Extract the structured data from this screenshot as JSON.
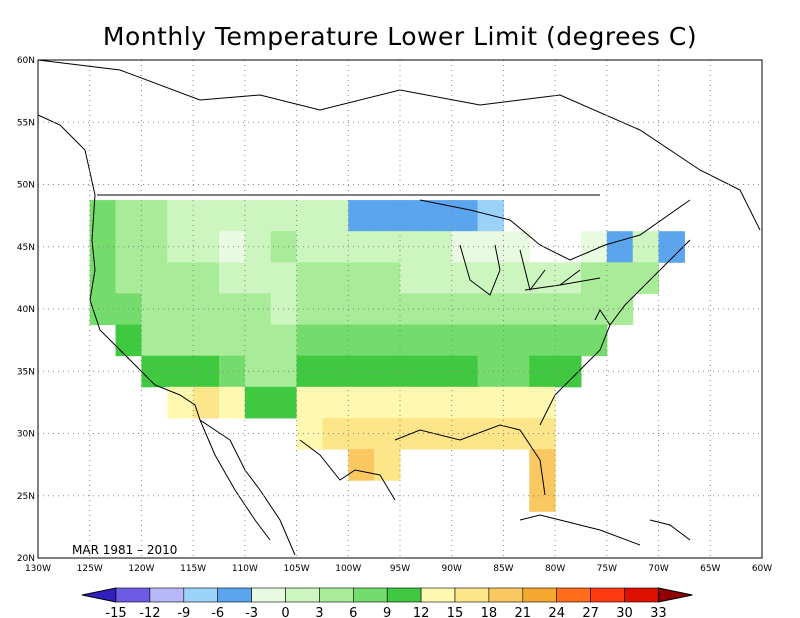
{
  "title": "Monthly Temperature Lower Limit (degrees C)",
  "period_label": "MAR 1981 – 2010",
  "axes": {
    "lon_labels": [
      "130W",
      "125W",
      "120W",
      "115W",
      "110W",
      "105W",
      "100W",
      "95W",
      "90W",
      "85W",
      "80W",
      "75W",
      "70W",
      "65W",
      "60W"
    ],
    "lat_labels": [
      "20N",
      "25N",
      "30N",
      "35N",
      "40N",
      "45N",
      "50N",
      "55N",
      "60N"
    ],
    "lon_values": [
      -130,
      -125,
      -120,
      -115,
      -110,
      -105,
      -100,
      -95,
      -90,
      -85,
      -80,
      -75,
      -70,
      -65,
      -60
    ],
    "lat_values": [
      20,
      25,
      30,
      35,
      40,
      45,
      50,
      55,
      60
    ]
  },
  "colorbar": {
    "labels": [
      "-15",
      "-12",
      "-9",
      "-6",
      "-3",
      "0",
      "3",
      "6",
      "9",
      "12",
      "15",
      "18",
      "21",
      "24",
      "27",
      "30",
      "33"
    ],
    "colors": [
      "#6e5ce6",
      "#b8b8f8",
      "#9ad2fa",
      "#5aa5ee",
      "#e8fae0",
      "#ccf5c0",
      "#a8ec9a",
      "#74dc6c",
      "#40c840",
      "#fff8b0",
      "#fde68a",
      "#f9c860",
      "#f5a830",
      "#ff6c1a",
      "#ff3a10",
      "#e01000",
      "#b00000"
    ],
    "left_arrow_color": "#3020c0",
    "right_arrow_color": "#900000"
  },
  "grid": true,
  "chart_data": {
    "type": "heatmap",
    "title": "Monthly Temperature Lower Limit (degrees C)",
    "xlabel": "",
    "ylabel": "",
    "xlim": [
      -130,
      -60
    ],
    "ylim": [
      20,
      60
    ],
    "cell_size_deg": 2.5,
    "bins": [
      -15,
      -12,
      -9,
      -6,
      -3,
      0,
      3,
      6,
      9,
      12,
      15,
      18,
      21,
      24,
      27,
      30,
      33
    ],
    "cells": [
      {
        "lon": -123.75,
        "lat": 47.5,
        "value": 7
      },
      {
        "lon": -123.75,
        "lat": 45,
        "value": 7
      },
      {
        "lon": -123.75,
        "lat": 42.5,
        "value": 7
      },
      {
        "lon": -123.75,
        "lat": 40,
        "value": 7
      },
      {
        "lon": -121.25,
        "lat": 47.5,
        "value": 5
      },
      {
        "lon": -121.25,
        "lat": 45,
        "value": 4
      },
      {
        "lon": -121.25,
        "lat": 42.5,
        "value": 4
      },
      {
        "lon": -121.25,
        "lat": 40,
        "value": 7
      },
      {
        "lon": -121.25,
        "lat": 37.5,
        "value": 10
      },
      {
        "lon": -118.75,
        "lat": 47.5,
        "value": 4
      },
      {
        "lon": -118.75,
        "lat": 45,
        "value": 5
      },
      {
        "lon": -118.75,
        "lat": 42.5,
        "value": 4
      },
      {
        "lon": -118.75,
        "lat": 40,
        "value": 5
      },
      {
        "lon": -118.75,
        "lat": 37.5,
        "value": 5
      },
      {
        "lon": -118.75,
        "lat": 35,
        "value": 11
      },
      {
        "lon": -116.25,
        "lat": 47.5,
        "value": 2
      },
      {
        "lon": -116.25,
        "lat": 45,
        "value": 2
      },
      {
        "lon": -116.25,
        "lat": 42.5,
        "value": 4
      },
      {
        "lon": -116.25,
        "lat": 40,
        "value": 4
      },
      {
        "lon": -116.25,
        "lat": 37.5,
        "value": 5
      },
      {
        "lon": -116.25,
        "lat": 35,
        "value": 11
      },
      {
        "lon": -116.25,
        "lat": 32.5,
        "value": 13
      },
      {
        "lon": -113.75,
        "lat": 47.5,
        "value": 1
      },
      {
        "lon": -113.75,
        "lat": 45,
        "value": 2
      },
      {
        "lon": -113.75,
        "lat": 42.5,
        "value": 4
      },
      {
        "lon": -113.75,
        "lat": 40,
        "value": 4
      },
      {
        "lon": -113.75,
        "lat": 37.5,
        "value": 5
      },
      {
        "lon": -113.75,
        "lat": 35,
        "value": 10
      },
      {
        "lon": -113.75,
        "lat": 32.5,
        "value": 16
      },
      {
        "lon": -111.25,
        "lat": 47.5,
        "value": 1
      },
      {
        "lon": -111.25,
        "lat": 45,
        "value": -1
      },
      {
        "lon": -111.25,
        "lat": 42.5,
        "value": 2
      },
      {
        "lon": -111.25,
        "lat": 40,
        "value": 4
      },
      {
        "lon": -111.25,
        "lat": 37.5,
        "value": 5
      },
      {
        "lon": -111.25,
        "lat": 35,
        "value": 7
      },
      {
        "lon": -111.25,
        "lat": 32.5,
        "value": 13
      },
      {
        "lon": -108.75,
        "lat": 47.5,
        "value": 1
      },
      {
        "lon": -108.75,
        "lat": 45,
        "value": 2
      },
      {
        "lon": -108.75,
        "lat": 42.5,
        "value": 2
      },
      {
        "lon": -108.75,
        "lat": 40,
        "value": 4
      },
      {
        "lon": -108.75,
        "lat": 37.5,
        "value": 5
      },
      {
        "lon": -108.75,
        "lat": 35,
        "value": 5
      },
      {
        "lon": -108.75,
        "lat": 32.5,
        "value": 10
      },
      {
        "lon": -106.25,
        "lat": 47.5,
        "value": 1
      },
      {
        "lon": -106.25,
        "lat": 45,
        "value": 4
      },
      {
        "lon": -106.25,
        "lat": 42.5,
        "value": 2
      },
      {
        "lon": -106.25,
        "lat": 40,
        "value": 1
      },
      {
        "lon": -106.25,
        "lat": 37.5,
        "value": 4
      },
      {
        "lon": -106.25,
        "lat": 35,
        "value": 5
      },
      {
        "lon": -106.25,
        "lat": 32.5,
        "value": 10
      },
      {
        "lon": -103.75,
        "lat": 47.5,
        "value": 1
      },
      {
        "lon": -103.75,
        "lat": 45,
        "value": 2
      },
      {
        "lon": -103.75,
        "lat": 42.5,
        "value": 4
      },
      {
        "lon": -103.75,
        "lat": 40,
        "value": 5
      },
      {
        "lon": -103.75,
        "lat": 37.5,
        "value": 7
      },
      {
        "lon": -103.75,
        "lat": 35,
        "value": 10
      },
      {
        "lon": -103.75,
        "lat": 32.5,
        "value": 13
      },
      {
        "lon": -103.75,
        "lat": 30,
        "value": 13
      },
      {
        "lon": -101.25,
        "lat": 47.5,
        "value": 1
      },
      {
        "lon": -101.25,
        "lat": 45,
        "value": 2
      },
      {
        "lon": -101.25,
        "lat": 42.5,
        "value": 4
      },
      {
        "lon": -101.25,
        "lat": 40,
        "value": 5
      },
      {
        "lon": -101.25,
        "lat": 37.5,
        "value": 7
      },
      {
        "lon": -101.25,
        "lat": 35,
        "value": 10
      },
      {
        "lon": -101.25,
        "lat": 32.5,
        "value": 13
      },
      {
        "lon": -101.25,
        "lat": 30,
        "value": 16
      },
      {
        "lon": -98.75,
        "lat": 47.5,
        "value": -4
      },
      {
        "lon": -98.75,
        "lat": 45,
        "value": 1
      },
      {
        "lon": -98.75,
        "lat": 42.5,
        "value": 4
      },
      {
        "lon": -98.75,
        "lat": 40,
        "value": 5
      },
      {
        "lon": -98.75,
        "lat": 37.5,
        "value": 7
      },
      {
        "lon": -98.75,
        "lat": 35,
        "value": 10
      },
      {
        "lon": -98.75,
        "lat": 32.5,
        "value": 13
      },
      {
        "lon": -98.75,
        "lat": 30,
        "value": 16
      },
      {
        "lon": -98.75,
        "lat": 27.5,
        "value": 19
      },
      {
        "lon": -96.25,
        "lat": 47.5,
        "value": -4
      },
      {
        "lon": -96.25,
        "lat": 45,
        "value": 1
      },
      {
        "lon": -96.25,
        "lat": 42.5,
        "value": 4
      },
      {
        "lon": -96.25,
        "lat": 40,
        "value": 5
      },
      {
        "lon": -96.25,
        "lat": 37.5,
        "value": 7
      },
      {
        "lon": -96.25,
        "lat": 35,
        "value": 11
      },
      {
        "lon": -96.25,
        "lat": 32.5,
        "value": 13
      },
      {
        "lon": -96.25,
        "lat": 30,
        "value": 16
      },
      {
        "lon": -96.25,
        "lat": 27.5,
        "value": 16
      },
      {
        "lon": -93.75,
        "lat": 47.5,
        "value": -4
      },
      {
        "lon": -93.75,
        "lat": 45,
        "value": 1
      },
      {
        "lon": -93.75,
        "lat": 42.5,
        "value": 2
      },
      {
        "lon": -93.75,
        "lat": 40,
        "value": 5
      },
      {
        "lon": -93.75,
        "lat": 37.5,
        "value": 7
      },
      {
        "lon": -93.75,
        "lat": 35,
        "value": 10
      },
      {
        "lon": -93.75,
        "lat": 32.5,
        "value": 13
      },
      {
        "lon": -93.75,
        "lat": 30,
        "value": 16
      },
      {
        "lon": -91.25,
        "lat": 47.5,
        "value": -4
      },
      {
        "lon": -91.25,
        "lat": 45,
        "value": 1
      },
      {
        "lon": -91.25,
        "lat": 42.5,
        "value": 2
      },
      {
        "lon": -91.25,
        "lat": 40,
        "value": 5
      },
      {
        "lon": -91.25,
        "lat": 37.5,
        "value": 7
      },
      {
        "lon": -91.25,
        "lat": 35,
        "value": 11
      },
      {
        "lon": -91.25,
        "lat": 32.5,
        "value": 13
      },
      {
        "lon": -91.25,
        "lat": 30,
        "value": 16
      },
      {
        "lon": -88.75,
        "lat": 47.5,
        "value": -4
      },
      {
        "lon": -88.75,
        "lat": 45,
        "value": -1
      },
      {
        "lon": -88.75,
        "lat": 42.5,
        "value": 2
      },
      {
        "lon": -88.75,
        "lat": 40,
        "value": 5
      },
      {
        "lon": -88.75,
        "lat": 37.5,
        "value": 7
      },
      {
        "lon": -88.75,
        "lat": 35,
        "value": 10
      },
      {
        "lon": -88.75,
        "lat": 32.5,
        "value": 13
      },
      {
        "lon": -88.75,
        "lat": 30,
        "value": 16
      },
      {
        "lon": -86.25,
        "lat": 47.5,
        "value": -7
      },
      {
        "lon": -86.25,
        "lat": 45,
        "value": -1
      },
      {
        "lon": -86.25,
        "lat": 42.5,
        "value": 2
      },
      {
        "lon": -86.25,
        "lat": 40,
        "value": 5
      },
      {
        "lon": -86.25,
        "lat": 37.5,
        "value": 7
      },
      {
        "lon": -86.25,
        "lat": 35,
        "value": 7
      },
      {
        "lon": -86.25,
        "lat": 32.5,
        "value": 13
      },
      {
        "lon": -86.25,
        "lat": 30,
        "value": 16
      },
      {
        "lon": -83.75,
        "lat": 45,
        "value": -1
      },
      {
        "lon": -83.75,
        "lat": 42.5,
        "value": 2
      },
      {
        "lon": -83.75,
        "lat": 40,
        "value": 5
      },
      {
        "lon": -83.75,
        "lat": 37.5,
        "value": 7
      },
      {
        "lon": -83.75,
        "lat": 35,
        "value": 7
      },
      {
        "lon": -83.75,
        "lat": 32.5,
        "value": 13
      },
      {
        "lon": -83.75,
        "lat": 30,
        "value": 16
      },
      {
        "lon": -81.25,
        "lat": 42.5,
        "value": 2
      },
      {
        "lon": -81.25,
        "lat": 40,
        "value": 5
      },
      {
        "lon": -81.25,
        "lat": 37.5,
        "value": 7
      },
      {
        "lon": -81.25,
        "lat": 35,
        "value": 10
      },
      {
        "lon": -81.25,
        "lat": 32.5,
        "value": 13
      },
      {
        "lon": -81.25,
        "lat": 30,
        "value": 16
      },
      {
        "lon": -81.25,
        "lat": 27.5,
        "value": 19
      },
      {
        "lon": -81.25,
        "lat": 25,
        "value": 19
      },
      {
        "lon": -78.75,
        "lat": 42.5,
        "value": 2
      },
      {
        "lon": -78.75,
        "lat": 40,
        "value": 4
      },
      {
        "lon": -78.75,
        "lat": 37.5,
        "value": 7
      },
      {
        "lon": -78.75,
        "lat": 35,
        "value": 10
      },
      {
        "lon": -76.25,
        "lat": 45,
        "value": -1
      },
      {
        "lon": -76.25,
        "lat": 42.5,
        "value": 4
      },
      {
        "lon": -76.25,
        "lat": 40,
        "value": 5
      },
      {
        "lon": -76.25,
        "lat": 37.5,
        "value": 7
      },
      {
        "lon": -73.75,
        "lat": 45,
        "value": -4
      },
      {
        "lon": -73.75,
        "lat": 42.5,
        "value": 4
      },
      {
        "lon": -73.75,
        "lat": 40,
        "value": 5
      },
      {
        "lon": -71.25,
        "lat": 45,
        "value": 1
      },
      {
        "lon": -71.25,
        "lat": 42.5,
        "value": 4
      },
      {
        "lon": -68.75,
        "lat": 45,
        "value": -4
      }
    ]
  }
}
